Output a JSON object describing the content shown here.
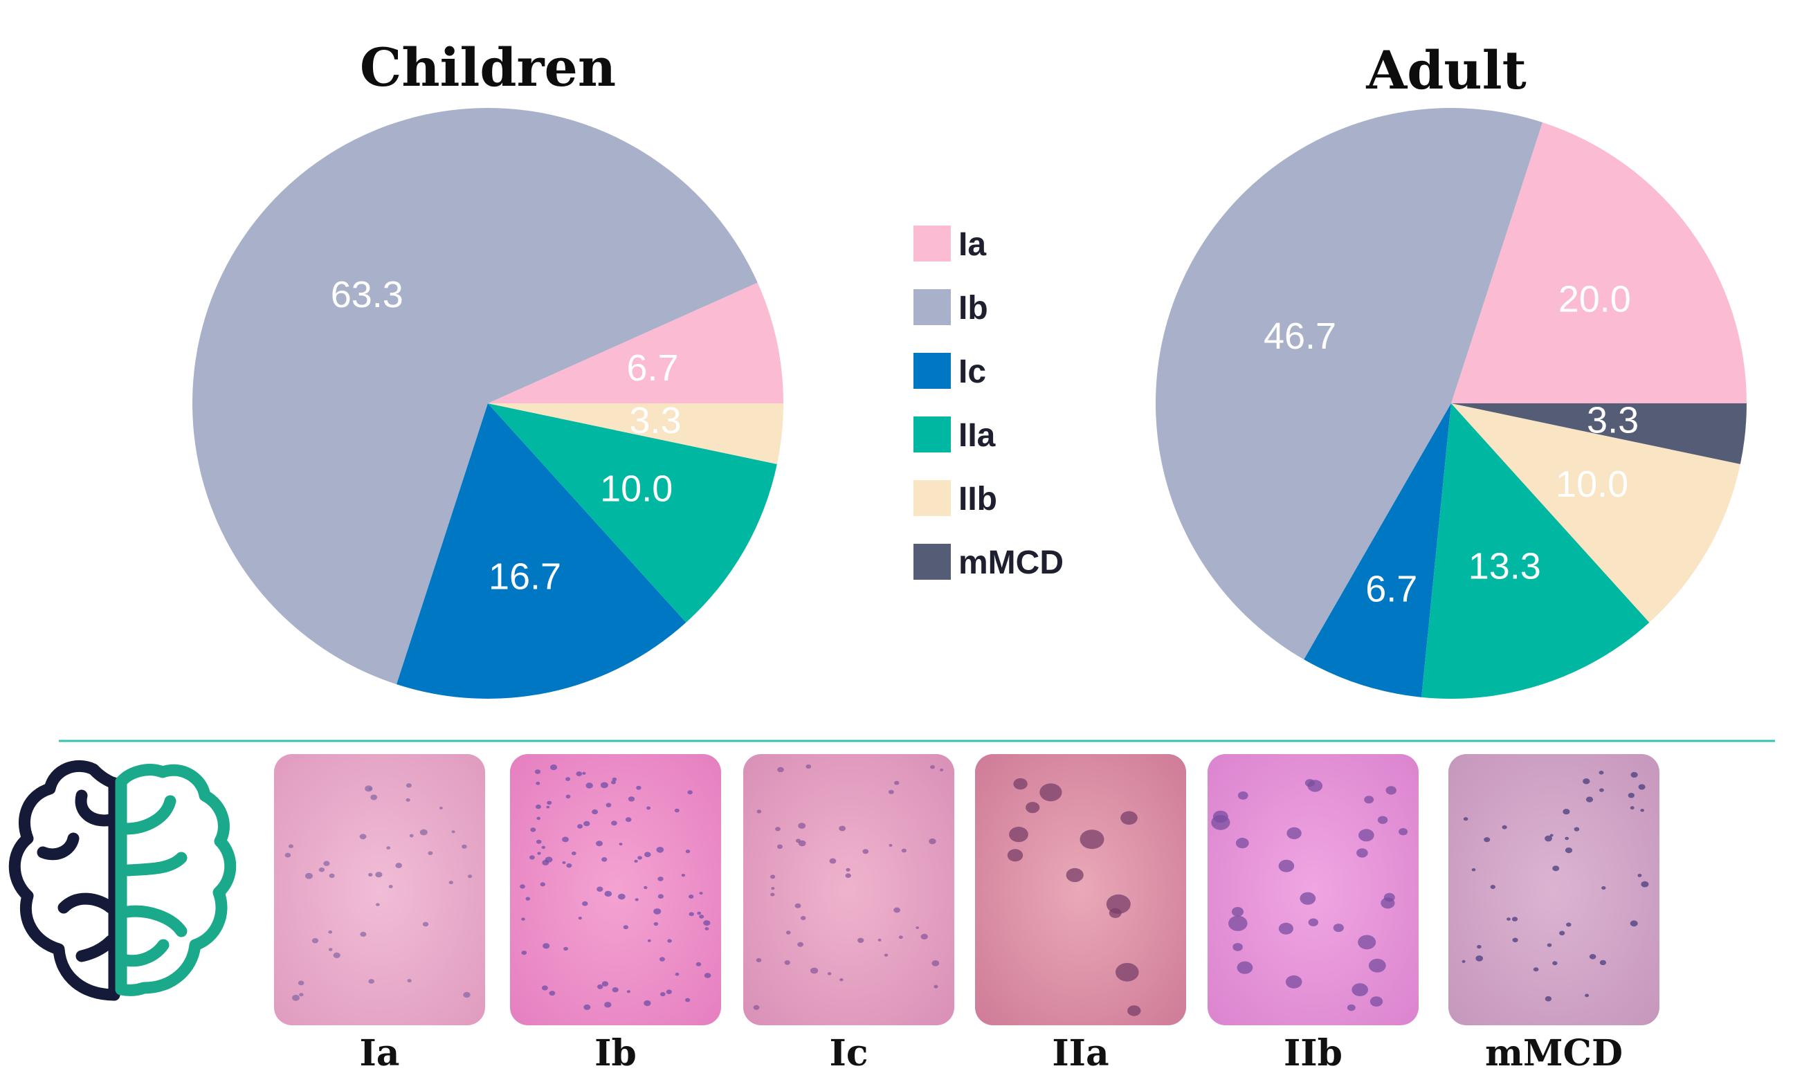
{
  "chart_data": [
    {
      "type": "pie",
      "title": "Children",
      "slices": [
        {
          "category": "Ia",
          "value": 6.7,
          "label": "6.7"
        },
        {
          "category": "Ib",
          "value": 63.3,
          "label": "63.3"
        },
        {
          "category": "Ic",
          "value": 16.7,
          "label": "16.7"
        },
        {
          "category": "IIa",
          "value": 10.0,
          "label": "10.0"
        },
        {
          "category": "IIb",
          "value": 3.3,
          "label": "3.3"
        }
      ]
    },
    {
      "type": "pie",
      "title": "Adult",
      "slices": [
        {
          "category": "Ia",
          "value": 20.0,
          "label": "20.0"
        },
        {
          "category": "Ib",
          "value": 46.7,
          "label": "46.7"
        },
        {
          "category": "Ic",
          "value": 6.7,
          "label": "6.7"
        },
        {
          "category": "IIa",
          "value": 13.3,
          "label": "13.3"
        },
        {
          "category": "IIb",
          "value": 10.0,
          "label": "10.0"
        },
        {
          "category": "mMCD",
          "value": 3.3,
          "label": "3.3"
        }
      ]
    }
  ],
  "legend": [
    {
      "label": "Ia",
      "color": "#fbbcd3"
    },
    {
      "label": "Ib",
      "color": "#a9b0c9"
    },
    {
      "label": "Ic",
      "color": "#0077c3"
    },
    {
      "label": "IIa",
      "color": "#00b8a1"
    },
    {
      "label": "IIb",
      "color": "#f9e4c3"
    },
    {
      "label": "mMCD",
      "color": "#545c76"
    }
  ],
  "histology": [
    {
      "label": "Ia",
      "icon": "histology-ia-image"
    },
    {
      "label": "Ib",
      "icon": "histology-ib-image"
    },
    {
      "label": "Ic",
      "icon": "histology-ic-image"
    },
    {
      "label": "IIa",
      "icon": "histology-iia-image"
    },
    {
      "label": "IIb",
      "icon": "histology-iib-image"
    },
    {
      "label": "mMCD",
      "icon": "histology-mmcd-image"
    }
  ],
  "colors": {
    "divider": "#35c3ad",
    "brain_left": "#141a38",
    "brain_right": "#1aa98a"
  }
}
